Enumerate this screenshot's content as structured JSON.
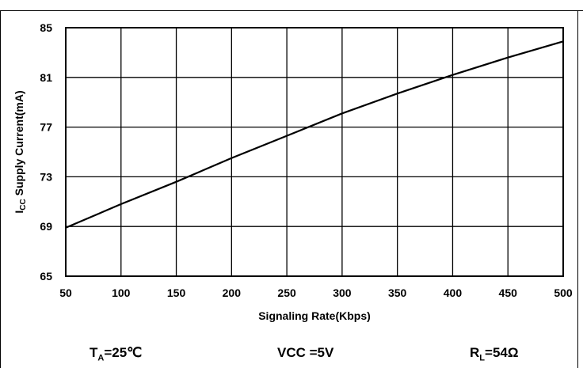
{
  "chart_data": {
    "type": "line",
    "title": "",
    "xlabel": "Signaling Rate(Kbps)",
    "ylabel": {
      "main": "I",
      "sub": "CC",
      "rest": " Supply Current(mA)"
    },
    "xlim": [
      50,
      500
    ],
    "ylim": [
      65,
      85
    ],
    "xticks": [
      "50",
      "100",
      "150",
      "200",
      "250",
      "300",
      "350",
      "400",
      "450",
      "500"
    ],
    "yticks": [
      "65",
      "69",
      "73",
      "77",
      "81",
      "85"
    ],
    "grid": true,
    "series": [
      {
        "x": [
          50,
          100,
          150,
          200,
          250,
          300,
          350,
          400,
          450,
          500
        ],
        "values": [
          68.9,
          70.8,
          72.6,
          74.5,
          76.3,
          78.1,
          79.7,
          81.2,
          82.6,
          83.9
        ]
      }
    ],
    "line_color": "#000000"
  },
  "conditions": {
    "ta": {
      "main": "T",
      "sub": "A",
      "rest": "=25℃"
    },
    "vcc": "VCC =5V",
    "rl": {
      "main": "R",
      "sub": "L",
      "rest": "=54Ω"
    }
  }
}
